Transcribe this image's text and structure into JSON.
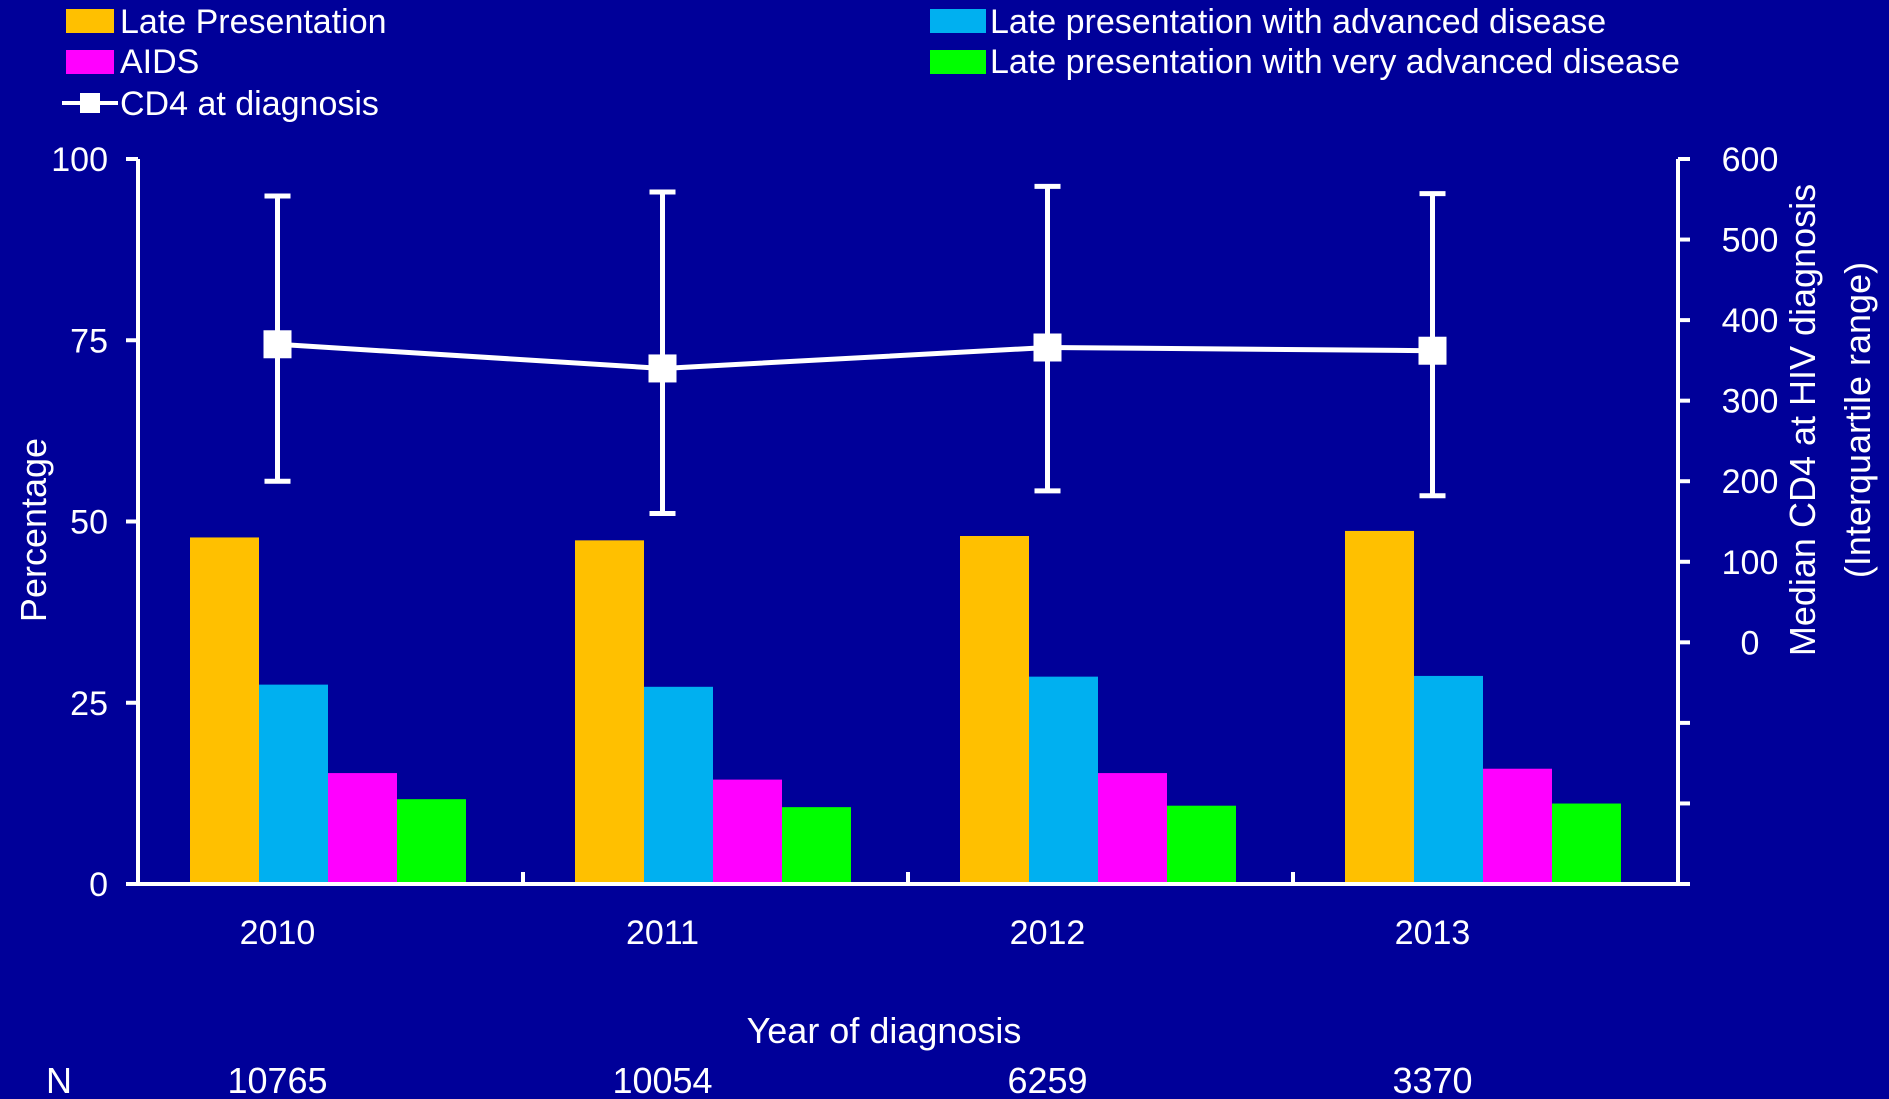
{
  "chart_data": {
    "type": "bar",
    "categories": [
      "2010",
      "2011",
      "2012",
      "2013"
    ],
    "xlabel": "Year of diagnosis",
    "ylabel": "Percentage",
    "ylim": [
      0,
      100
    ],
    "yticks": [
      "0",
      "25",
      "50",
      "75",
      "100"
    ],
    "y2label_line1": "Median CD4 at HIV diagnosis",
    "y2label_line2": "(Interquartile range)",
    "y2lim": [
      -300,
      600
    ],
    "y2ticks": [
      "0",
      "100",
      "200",
      "300",
      "400",
      "500",
      "600"
    ],
    "series": [
      {
        "name": "Late Presentation",
        "color": "#ffc000",
        "values": [
          47.8,
          47.4,
          48.0,
          48.7
        ]
      },
      {
        "name": "Late presentation with advanced disease",
        "color": "#00b0f0",
        "values": [
          27.5,
          27.2,
          28.6,
          28.7
        ]
      },
      {
        "name": "AIDS",
        "color": "#ff00ff",
        "values": [
          15.3,
          14.4,
          15.3,
          15.9
        ]
      },
      {
        "name": "Late presentation with very advanced disease",
        "color": "#00ff00",
        "values": [
          11.7,
          10.6,
          10.8,
          11.1
        ]
      }
    ],
    "line_series": {
      "name": "CD4 at diagnosis",
      "color": "#ffffff",
      "median": [
        370,
        340,
        366,
        362
      ],
      "q1": [
        200,
        160,
        188,
        182
      ],
      "q3": [
        554,
        559,
        566,
        557
      ]
    },
    "n_label": "N",
    "n_values": [
      "10765",
      "10054",
      "6259",
      "3370"
    ],
    "legend_position": "top"
  }
}
